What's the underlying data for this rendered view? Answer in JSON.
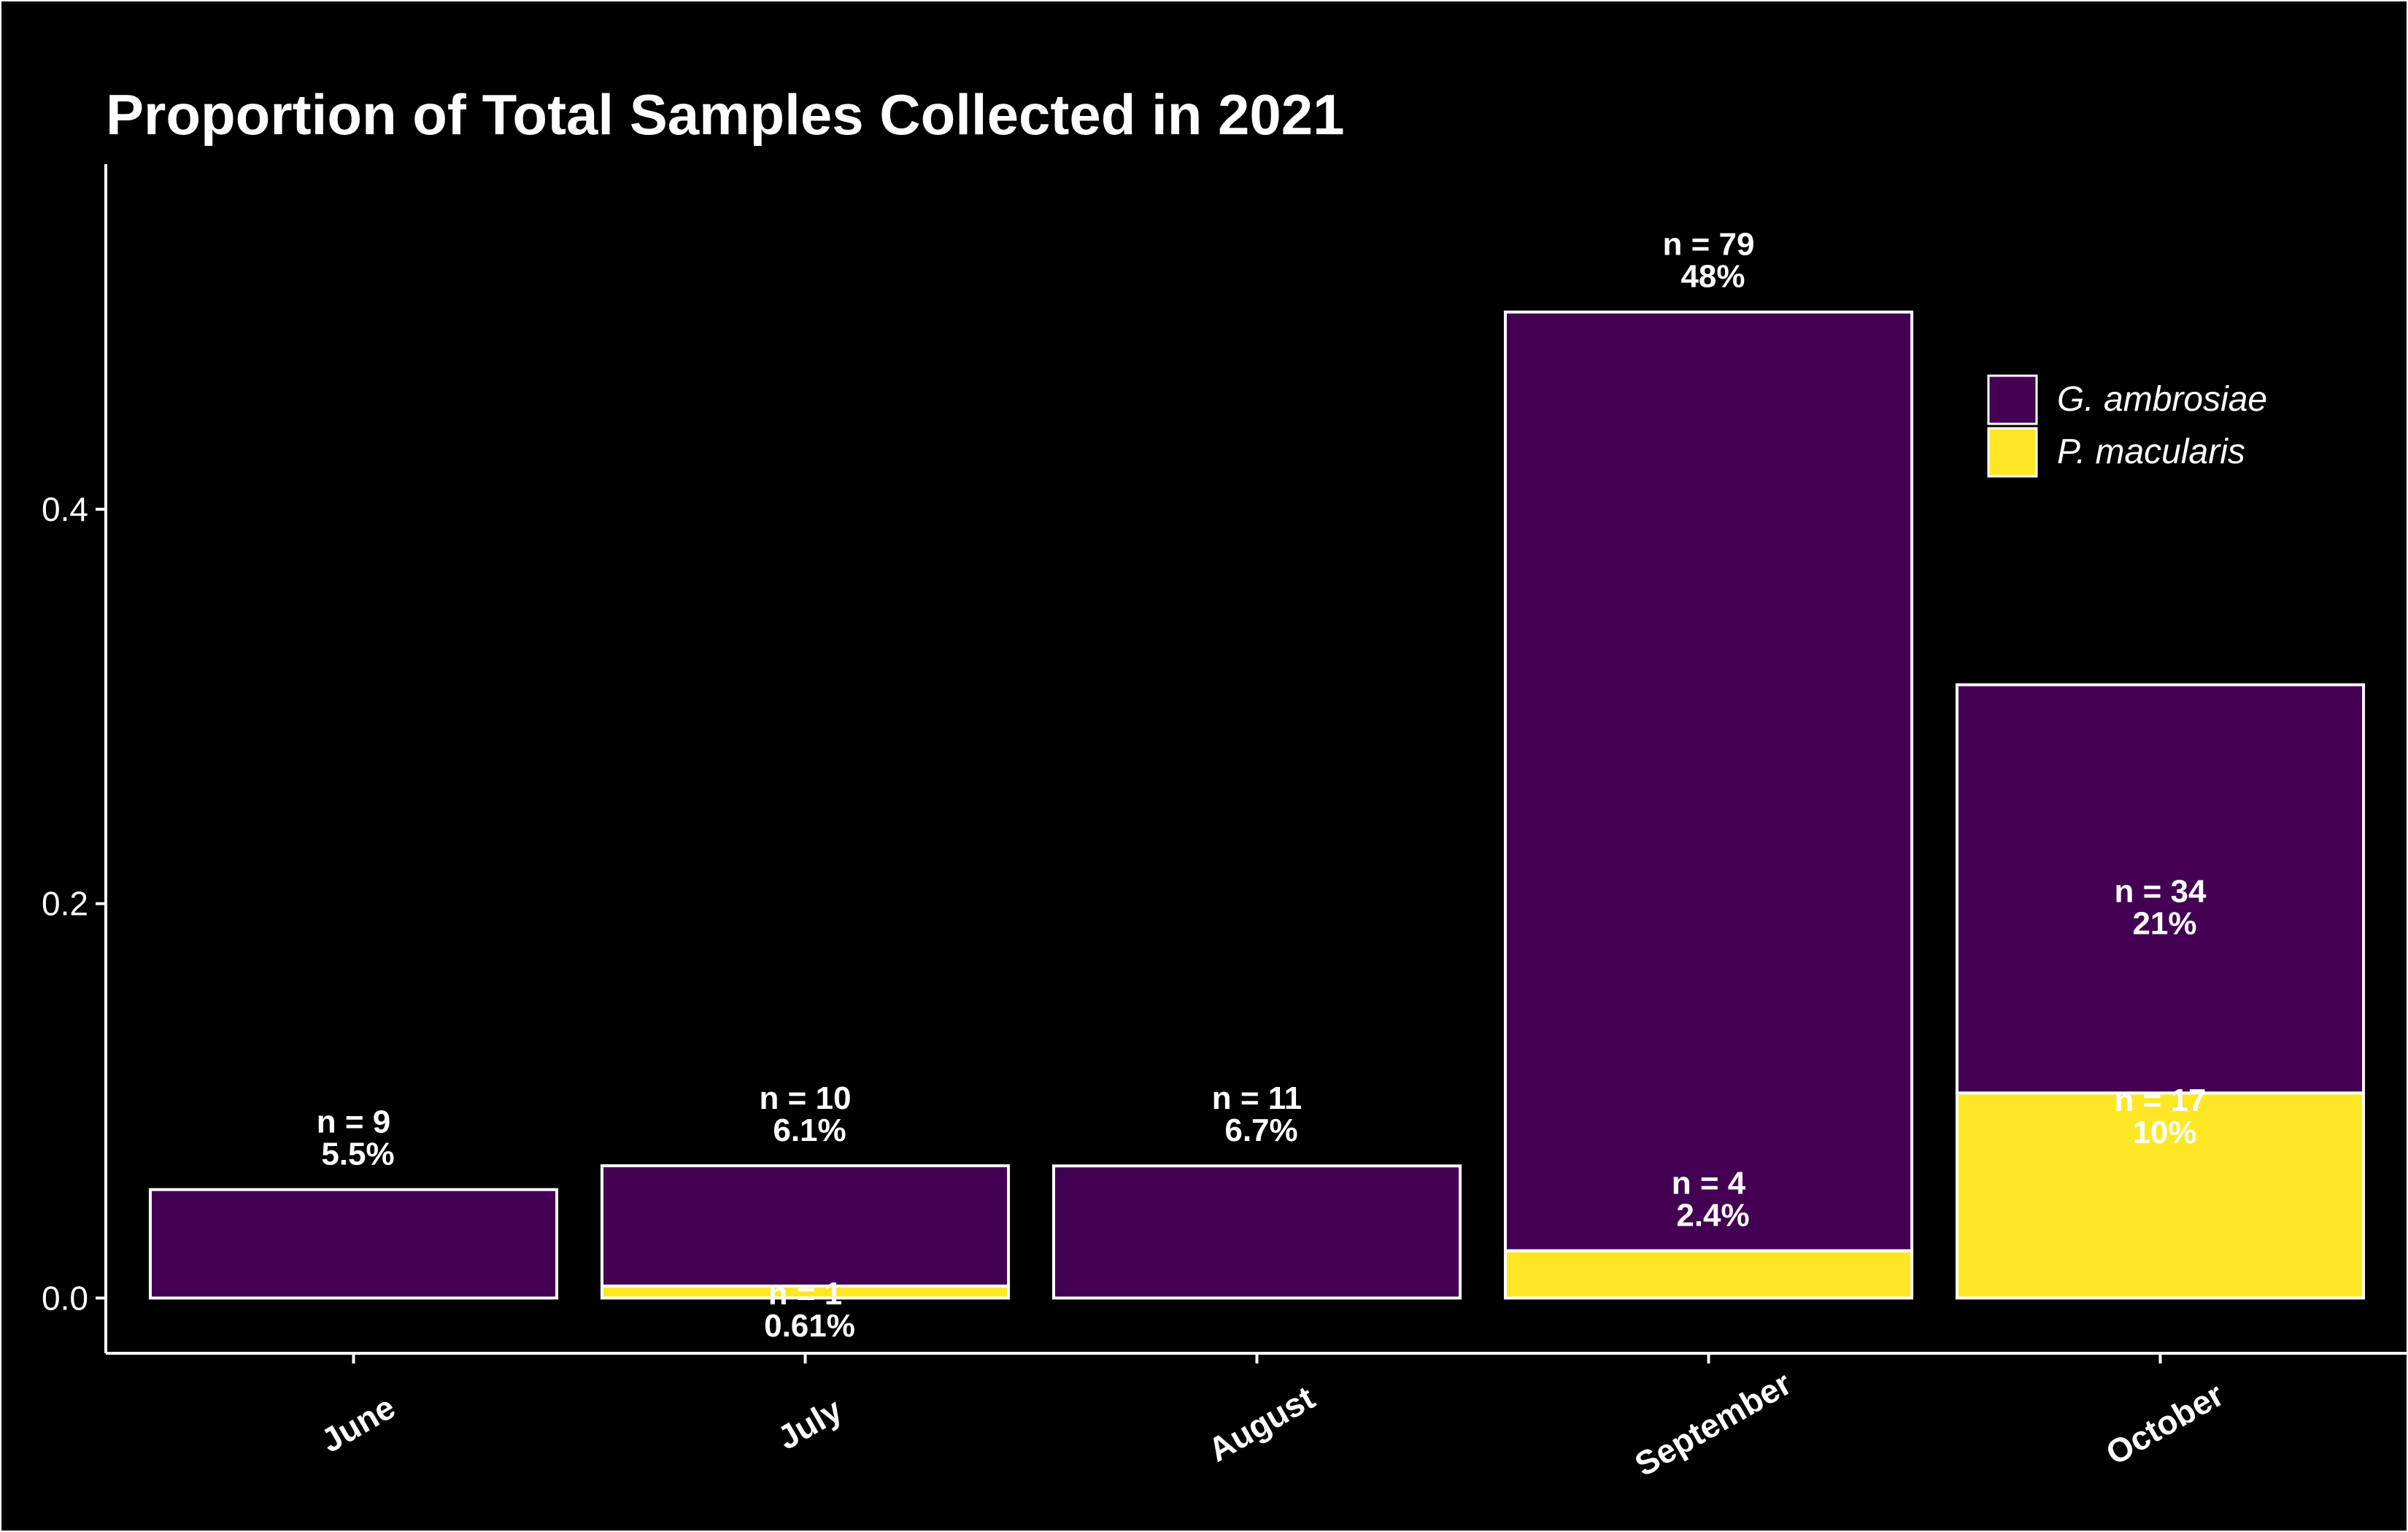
{
  "chart_data": {
    "type": "bar",
    "stacked": true,
    "title": "Proportion of Total Samples Collected in 2021",
    "xlabel": "",
    "ylabel": "",
    "categories": [
      "June",
      "July",
      "August",
      "September",
      "October"
    ],
    "ylim": [
      -0.028,
      0.575
    ],
    "yticks": [
      "0.0",
      "0.2",
      "0.4"
    ],
    "ytick_values": [
      0.0,
      0.2,
      0.4
    ],
    "series": [
      {
        "name": "P. macularis",
        "color": "#FDE725",
        "values": [
          0.0,
          0.0061,
          0.0,
          0.024,
          0.104
        ]
      },
      {
        "name": "G. ambrosiae",
        "color": "#440154",
        "values": [
          0.055,
          0.061,
          0.067,
          0.476,
          0.207
        ]
      }
    ],
    "legend": {
      "position": "top-right",
      "entries": [
        {
          "label": "G. ambrosiae",
          "color": "#440154"
        },
        {
          "label": "P. macularis",
          "color": "#FDE725"
        }
      ]
    },
    "annotations": [
      {
        "category": "June",
        "n": "n =  9",
        "pct": "5.5%",
        "y": 0.055
      },
      {
        "category": "July",
        "n": "n = 10",
        "pct": "6.1%",
        "y": 0.067
      },
      {
        "category": "July",
        "n": "n =  1",
        "pct": "0.61%",
        "y": 0.006,
        "inside": true
      },
      {
        "category": "August",
        "n": "n = 11",
        "pct": "6.7%",
        "y": 0.067
      },
      {
        "category": "September",
        "n": "n = 79",
        "pct": "48%",
        "y": 0.5
      },
      {
        "category": "September",
        "n": "n =  4",
        "pct": "2.4%",
        "y": 0.024
      },
      {
        "category": "October",
        "n": "n = 34",
        "pct": "21%",
        "y": 0.21,
        "inside": true
      },
      {
        "category": "October",
        "n": "n = 17",
        "pct": "10%",
        "y": 0.104,
        "inside": true
      }
    ],
    "grid": false,
    "colors": {
      "background": "#000000",
      "bar_outline": "#ffffff",
      "text": "#ffffff"
    }
  }
}
